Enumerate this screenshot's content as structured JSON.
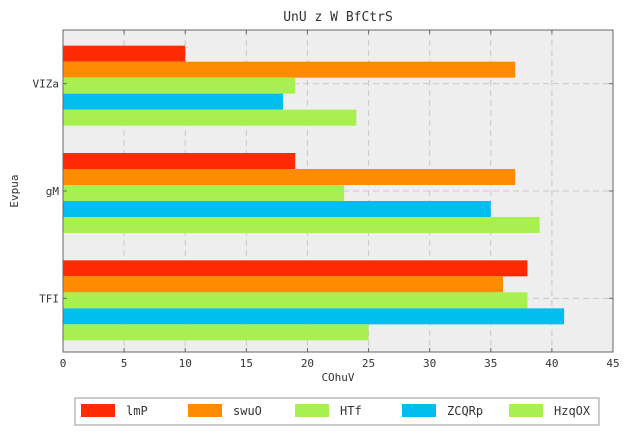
{
  "chart_data": {
    "type": "bar",
    "orientation": "horizontal",
    "title": "UnU z W BfCtrS",
    "xlabel": "COhuV",
    "ylabel": "Evpua",
    "categories": [
      "TFI",
      "gM",
      "VIZa"
    ],
    "xlim": [
      0,
      45
    ],
    "xticks": [
      0,
      5,
      10,
      15,
      20,
      25,
      30,
      35,
      40,
      45
    ],
    "grid": true,
    "legend_position": "bottom",
    "series": [
      {
        "name": "lmP",
        "color": "#ff2a00",
        "values": [
          38,
          19,
          10
        ]
      },
      {
        "name": "swuO",
        "color": "#ff8c00",
        "values": [
          36,
          37,
          37
        ]
      },
      {
        "name": "HTf",
        "color": "#a8f050",
        "values": [
          38,
          23,
          19
        ]
      },
      {
        "name": "ZCQRp",
        "color": "#00bff0",
        "values": [
          41,
          35,
          18
        ]
      },
      {
        "name": "HzqOX",
        "color": "#a8f050",
        "values": [
          25,
          39,
          24
        ]
      }
    ]
  }
}
